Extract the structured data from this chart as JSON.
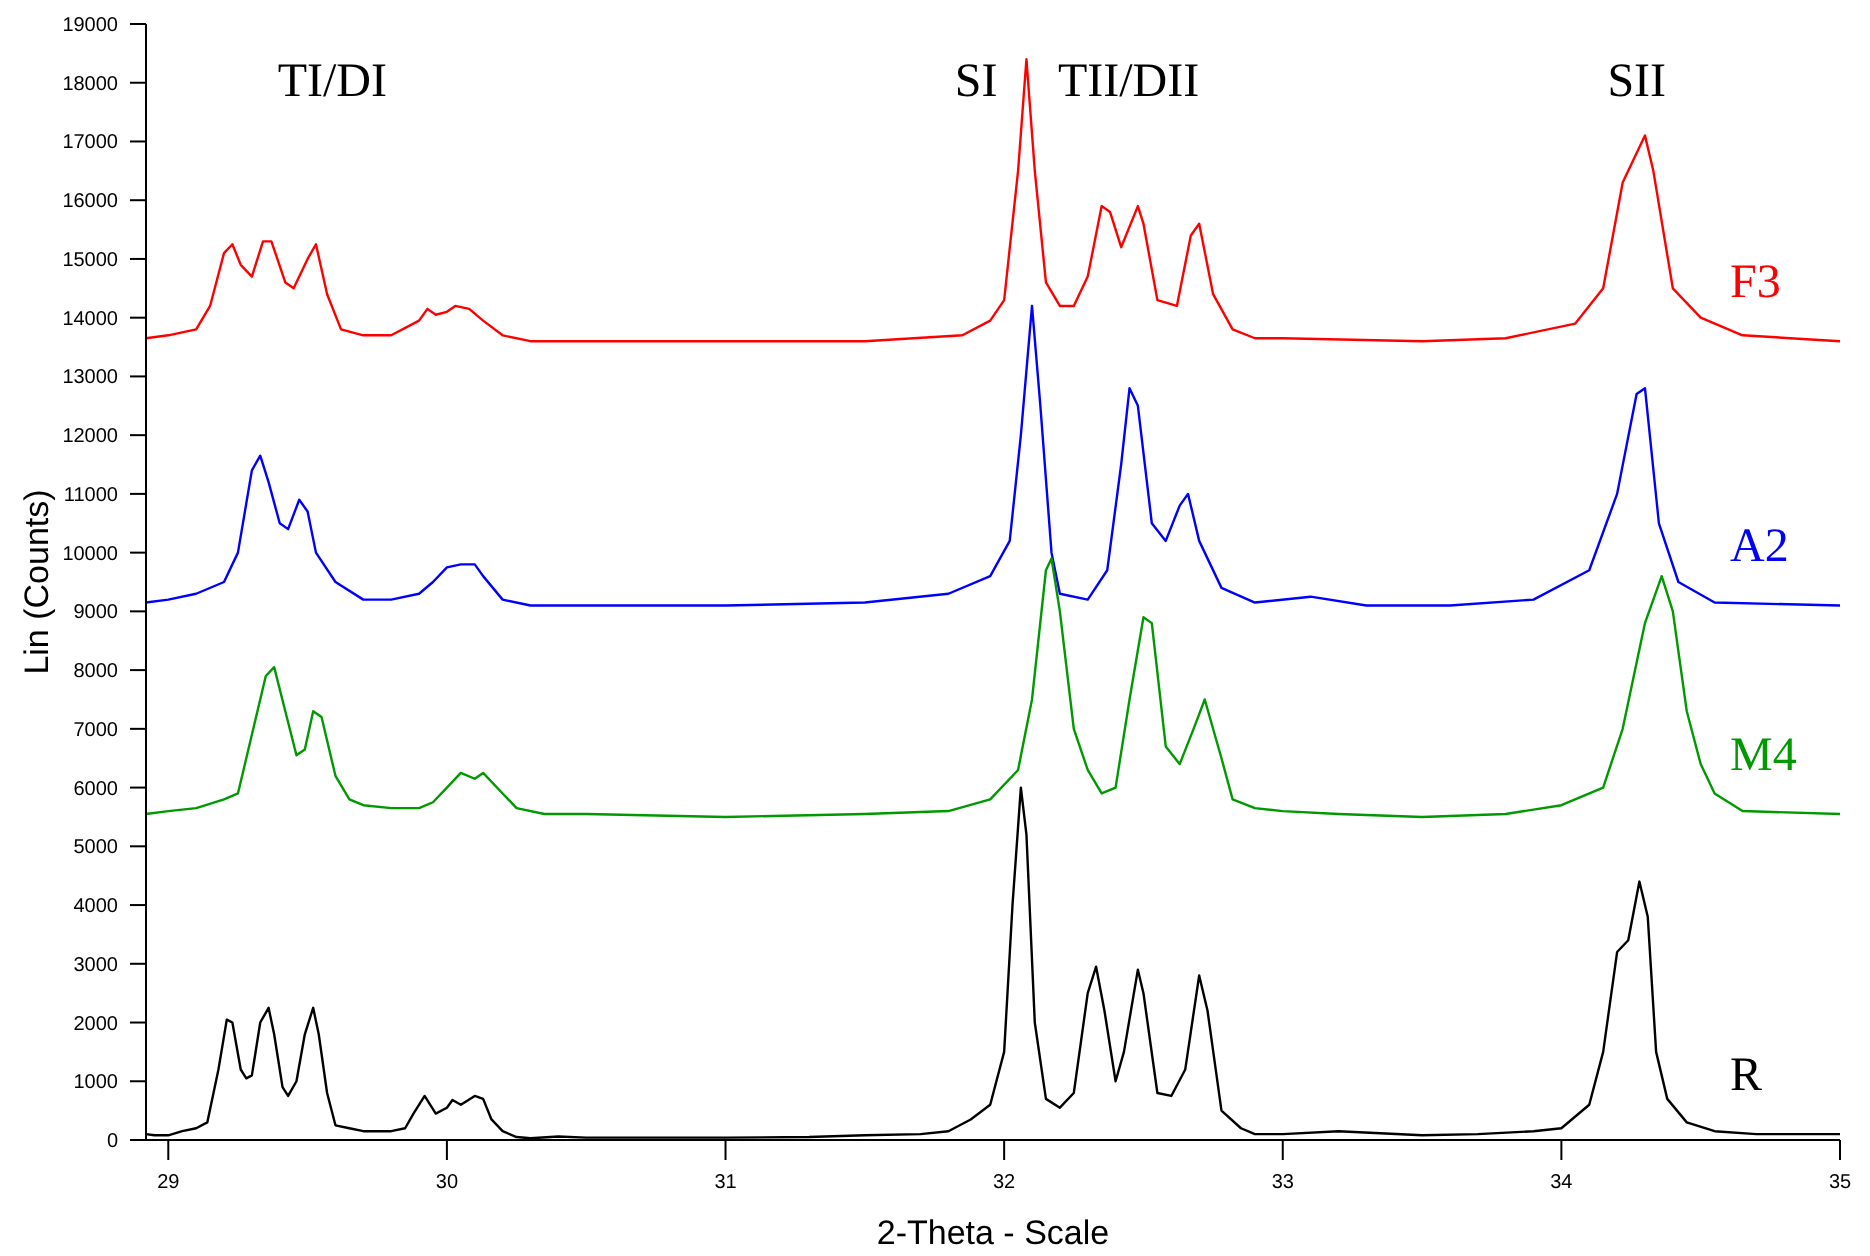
{
  "chart_data": {
    "type": "line",
    "xlabel": "2-Theta - Scale",
    "ylabel": "Lin (Counts)",
    "xlim": [
      28.92,
      35.0
    ],
    "xticks": [
      29,
      30,
      31,
      32,
      33,
      34,
      35
    ],
    "ylim": [
      0,
      19000
    ],
    "yticks": [
      0,
      1000,
      2000,
      3000,
      4000,
      5000,
      6000,
      7000,
      8000,
      9000,
      10000,
      11000,
      12000,
      13000,
      14000,
      15000,
      16000,
      17000,
      18000,
      19000
    ],
    "grid": false,
    "legend": false,
    "marker": "none",
    "line_style": "solid",
    "annotations": [
      "TI/DI",
      "SI",
      "TII/DII",
      "SII"
    ],
    "series": [
      {
        "name": "F3",
        "color": "#ff0000",
        "x": [
          28.92,
          29.0,
          29.1,
          29.15,
          29.2,
          29.23,
          29.26,
          29.3,
          29.34,
          29.37,
          29.42,
          29.45,
          29.5,
          29.53,
          29.57,
          29.62,
          29.7,
          29.8,
          29.9,
          29.93,
          29.96,
          30.0,
          30.03,
          30.08,
          30.13,
          30.2,
          30.3,
          30.5,
          31.0,
          31.5,
          31.85,
          31.95,
          32.0,
          32.05,
          32.08,
          32.11,
          32.15,
          32.2,
          32.25,
          32.3,
          32.35,
          32.38,
          32.42,
          32.48,
          32.5,
          32.55,
          32.62,
          32.67,
          32.7,
          32.75,
          32.82,
          32.9,
          33.0,
          33.5,
          33.8,
          34.05,
          34.15,
          34.22,
          34.26,
          34.3,
          34.33,
          34.4,
          34.5,
          34.65,
          35.0
        ],
        "values": [
          13650,
          13700,
          13800,
          14200,
          15100,
          15250,
          14900,
          14700,
          15300,
          15300,
          14600,
          14500,
          15000,
          15250,
          14400,
          13800,
          13700,
          13700,
          13950,
          14150,
          14050,
          14100,
          14200,
          14150,
          13950,
          13700,
          13600,
          13600,
          13600,
          13600,
          13700,
          13950,
          14300,
          16500,
          18400,
          16500,
          14600,
          14200,
          14200,
          14700,
          15900,
          15800,
          15200,
          15900,
          15600,
          14300,
          14200,
          15400,
          15600,
          14400,
          13800,
          13650,
          13650,
          13600,
          13650,
          13900,
          14500,
          16300,
          16700,
          17100,
          16500,
          14500,
          14000,
          13700,
          13600
        ]
      },
      {
        "name": "A2",
        "color": "#0000ff",
        "x": [
          28.92,
          29.0,
          29.1,
          29.2,
          29.25,
          29.3,
          29.33,
          29.36,
          29.4,
          29.43,
          29.47,
          29.5,
          29.53,
          29.6,
          29.7,
          29.8,
          29.9,
          29.95,
          30.0,
          30.05,
          30.1,
          30.13,
          30.2,
          30.3,
          30.5,
          31.0,
          31.5,
          31.8,
          31.95,
          32.02,
          32.06,
          32.1,
          32.13,
          32.17,
          32.2,
          32.3,
          32.37,
          32.42,
          32.45,
          32.48,
          32.53,
          32.58,
          32.63,
          32.66,
          32.7,
          32.78,
          32.9,
          33.1,
          33.3,
          33.6,
          33.9,
          34.1,
          34.2,
          34.27,
          34.3,
          34.35,
          34.42,
          34.55,
          35.0
        ],
        "values": [
          9150,
          9200,
          9300,
          9500,
          10000,
          11400,
          11650,
          11200,
          10500,
          10400,
          10900,
          10700,
          10000,
          9500,
          9200,
          9200,
          9300,
          9500,
          9750,
          9800,
          9800,
          9600,
          9200,
          9100,
          9100,
          9100,
          9150,
          9300,
          9600,
          10200,
          12000,
          14200,
          12500,
          10000,
          9300,
          9200,
          9700,
          11500,
          12800,
          12500,
          10500,
          10200,
          10800,
          11000,
          10200,
          9400,
          9150,
          9250,
          9100,
          9100,
          9200,
          9700,
          11000,
          12700,
          12800,
          10500,
          9500,
          9150,
          9100
        ]
      },
      {
        "name": "M4",
        "color": "#009900",
        "x": [
          28.92,
          29.0,
          29.1,
          29.2,
          29.25,
          29.3,
          29.35,
          29.38,
          29.42,
          29.46,
          29.49,
          29.52,
          29.55,
          29.6,
          29.65,
          29.7,
          29.8,
          29.9,
          29.95,
          30.0,
          30.05,
          30.1,
          30.13,
          30.2,
          30.25,
          30.35,
          30.5,
          31.0,
          31.5,
          31.8,
          31.95,
          32.05,
          32.1,
          32.15,
          32.17,
          32.2,
          32.25,
          32.3,
          32.35,
          32.4,
          32.45,
          32.5,
          32.53,
          32.58,
          32.63,
          32.68,
          32.72,
          32.78,
          32.82,
          32.9,
          33.0,
          33.2,
          33.5,
          33.8,
          34.0,
          34.15,
          34.22,
          34.3,
          34.36,
          34.4,
          34.45,
          34.5,
          34.55,
          34.65,
          35.0
        ],
        "values": [
          5550,
          5600,
          5650,
          5800,
          5900,
          6900,
          7900,
          8050,
          7300,
          6550,
          6650,
          7300,
          7200,
          6200,
          5800,
          5700,
          5650,
          5650,
          5750,
          6000,
          6250,
          6150,
          6250,
          5900,
          5650,
          5550,
          5550,
          5500,
          5550,
          5600,
          5800,
          6300,
          7500,
          9700,
          9900,
          9000,
          7000,
          6300,
          5900,
          6000,
          7500,
          8900,
          8800,
          6700,
          6400,
          7000,
          7500,
          6500,
          5800,
          5650,
          5600,
          5550,
          5500,
          5550,
          5700,
          6000,
          7000,
          8800,
          9600,
          9000,
          7300,
          6400,
          5900,
          5600,
          5550
        ]
      },
      {
        "name": "R",
        "color": "#000000",
        "x": [
          28.92,
          28.95,
          29.0,
          29.05,
          29.1,
          29.14,
          29.18,
          29.21,
          29.23,
          29.26,
          29.28,
          29.3,
          29.33,
          29.36,
          29.38,
          29.41,
          29.43,
          29.46,
          29.49,
          29.52,
          29.54,
          29.57,
          29.6,
          29.65,
          29.7,
          29.8,
          29.85,
          29.88,
          29.92,
          29.96,
          30.0,
          30.02,
          30.05,
          30.1,
          30.13,
          30.16,
          30.2,
          30.25,
          30.3,
          30.4,
          30.5,
          30.7,
          31.0,
          31.3,
          31.5,
          31.7,
          31.8,
          31.88,
          31.95,
          32.0,
          32.03,
          32.06,
          32.08,
          32.11,
          32.15,
          32.2,
          32.25,
          32.3,
          32.33,
          32.36,
          32.4,
          32.43,
          32.48,
          32.5,
          32.55,
          32.6,
          32.65,
          32.7,
          32.73,
          32.78,
          32.85,
          32.9,
          33.0,
          33.2,
          33.5,
          33.7,
          33.9,
          34.0,
          34.1,
          34.15,
          34.2,
          34.24,
          34.28,
          34.31,
          34.34,
          34.38,
          34.45,
          34.55,
          34.7,
          35.0
        ],
        "values": [
          100,
          80,
          80,
          150,
          200,
          300,
          1200,
          2050,
          2000,
          1200,
          1050,
          1100,
          2000,
          2250,
          1800,
          900,
          750,
          1000,
          1800,
          2250,
          1800,
          800,
          250,
          200,
          150,
          150,
          200,
          450,
          750,
          450,
          550,
          680,
          600,
          750,
          700,
          350,
          150,
          50,
          30,
          60,
          40,
          40,
          40,
          50,
          80,
          100,
          150,
          350,
          600,
          1500,
          4000,
          6000,
          5200,
          2000,
          700,
          550,
          800,
          2500,
          2950,
          2200,
          1000,
          1500,
          2900,
          2500,
          800,
          750,
          1200,
          2800,
          2200,
          500,
          200,
          100,
          100,
          150,
          80,
          100,
          150,
          200,
          600,
          1500,
          3200,
          3400,
          4400,
          3800,
          1500,
          700,
          300,
          150,
          100,
          100
        ]
      }
    ]
  }
}
